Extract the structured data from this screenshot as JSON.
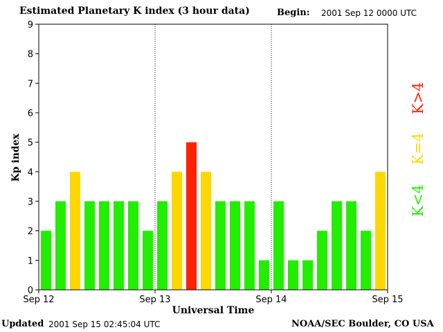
{
  "header": {
    "title": "Estimated Planetary K index (3 hour data)",
    "begin_label": "Begin:",
    "begin_value": "2001 Sep 12 0000 UTC"
  },
  "footer": {
    "updated_label": "Updated",
    "updated_value": "2001 Sep 15 02:45:04 UTC",
    "credit": "NOAA/SEC Boulder, CO USA"
  },
  "legend": [
    {
      "label": "K<4",
      "color": "#22ee00"
    },
    {
      "label": "K=4",
      "color": "#ffd700"
    },
    {
      "label": "K>4",
      "color": "#ff2200"
    }
  ],
  "chart_data": {
    "type": "bar",
    "title": "Estimated Planetary K index (3 hour data)",
    "xlabel": "Universal Time",
    "ylabel": "Kp index",
    "ylim": [
      0,
      9
    ],
    "yticks": [
      0,
      1,
      2,
      3,
      4,
      5,
      6,
      7,
      8,
      9
    ],
    "x_tick_labels": [
      "Sep 12",
      "Sep 13",
      "Sep 14",
      "Sep 15"
    ],
    "values": [
      2,
      3,
      4,
      3,
      3,
      3,
      3,
      2,
      3,
      4,
      5,
      4,
      3,
      3,
      3,
      1,
      3,
      1,
      1,
      2,
      3,
      3,
      2,
      4
    ],
    "color_rule": {
      "below": "#22ee00",
      "equal": "#ffd700",
      "above": "#ff2200",
      "threshold": 4
    },
    "day_separators": "dotted",
    "grid": false
  }
}
